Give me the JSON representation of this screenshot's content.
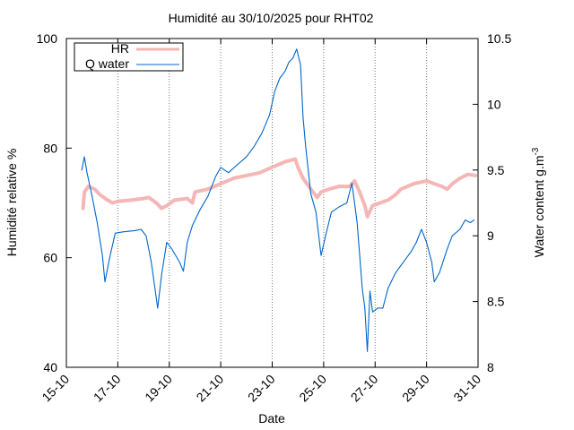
{
  "chart_data": {
    "type": "line",
    "title": "Humidité au 30/10/2025 pour RHT02",
    "xlabel": "Date",
    "ylabel_left": "Humidité relative %",
    "ylabel_right_base": "Water content g.m",
    "ylabel_right_sup": "-3",
    "x_tick_labels": [
      "15-10",
      "17-10",
      "19-10",
      "21-10",
      "23-10",
      "25-10",
      "27-10",
      "29-10",
      "31-10"
    ],
    "x_range_days": [
      15,
      31
    ],
    "y_left_ticks": [
      "40",
      "60",
      "80",
      "100"
    ],
    "y_left_range": [
      40,
      100
    ],
    "y_right_ticks": [
      "8",
      "8.5",
      "9",
      "9.5",
      "10",
      "10.5"
    ],
    "y_right_range": [
      8,
      10.5
    ],
    "grid": "vertical dotted at x ticks",
    "legend_position": "top-left",
    "series": [
      {
        "name": "HR",
        "axis": "left",
        "color": "#f5b6b6",
        "points": [
          [
            15.65,
            69.0
          ],
          [
            15.7,
            72.0
          ],
          [
            15.85,
            73.0
          ],
          [
            16.1,
            72.5
          ],
          [
            16.3,
            71.5
          ],
          [
            16.6,
            70.5
          ],
          [
            16.8,
            70.0
          ],
          [
            17.0,
            70.3
          ],
          [
            17.5,
            70.5
          ],
          [
            18.0,
            70.8
          ],
          [
            18.2,
            71.0
          ],
          [
            18.5,
            70.0
          ],
          [
            18.7,
            69.0
          ],
          [
            18.9,
            69.5
          ],
          [
            19.2,
            70.5
          ],
          [
            19.7,
            70.8
          ],
          [
            19.9,
            70.0
          ],
          [
            20.0,
            72.0
          ],
          [
            20.5,
            72.5
          ],
          [
            21.0,
            73.5
          ],
          [
            21.5,
            74.5
          ],
          [
            22.0,
            75.0
          ],
          [
            22.5,
            75.5
          ],
          [
            23.0,
            76.5
          ],
          [
            23.5,
            77.5
          ],
          [
            23.9,
            78.0
          ],
          [
            24.0,
            76.5
          ],
          [
            24.2,
            74.5
          ],
          [
            24.5,
            72.5
          ],
          [
            24.75,
            71.0
          ],
          [
            24.9,
            72.0
          ],
          [
            25.2,
            72.5
          ],
          [
            25.6,
            73.0
          ],
          [
            26.0,
            73.0
          ],
          [
            26.2,
            74.0
          ],
          [
            26.4,
            72.0
          ],
          [
            26.6,
            69.5
          ],
          [
            26.7,
            67.5
          ],
          [
            26.9,
            69.5
          ],
          [
            27.2,
            70.0
          ],
          [
            27.5,
            70.5
          ],
          [
            27.8,
            71.5
          ],
          [
            28.0,
            72.5
          ],
          [
            28.5,
            73.5
          ],
          [
            29.0,
            74.0
          ],
          [
            29.3,
            73.5
          ],
          [
            29.6,
            73.0
          ],
          [
            29.8,
            72.5
          ],
          [
            30.0,
            73.5
          ],
          [
            30.3,
            74.5
          ],
          [
            30.6,
            75.2
          ],
          [
            30.9,
            75.0
          ]
        ]
      },
      {
        "name": "Q water",
        "axis": "right",
        "color": "#0066cc",
        "points": [
          [
            15.6,
            9.5
          ],
          [
            15.65,
            9.55
          ],
          [
            15.7,
            9.6
          ],
          [
            15.8,
            9.48
          ],
          [
            16.0,
            9.3
          ],
          [
            16.2,
            9.1
          ],
          [
            16.4,
            8.85
          ],
          [
            16.5,
            8.65
          ],
          [
            16.7,
            8.85
          ],
          [
            16.9,
            9.02
          ],
          [
            17.2,
            9.03
          ],
          [
            17.7,
            9.04
          ],
          [
            17.9,
            9.05
          ],
          [
            18.1,
            9.0
          ],
          [
            18.3,
            8.8
          ],
          [
            18.55,
            8.45
          ],
          [
            18.7,
            8.7
          ],
          [
            18.9,
            8.95
          ],
          [
            19.1,
            8.9
          ],
          [
            19.4,
            8.8
          ],
          [
            19.55,
            8.73
          ],
          [
            19.7,
            8.95
          ],
          [
            19.9,
            9.08
          ],
          [
            20.2,
            9.2
          ],
          [
            20.5,
            9.3
          ],
          [
            20.8,
            9.45
          ],
          [
            21.0,
            9.52
          ],
          [
            21.3,
            9.48
          ],
          [
            21.7,
            9.55
          ],
          [
            22.0,
            9.6
          ],
          [
            22.3,
            9.68
          ],
          [
            22.6,
            9.78
          ],
          [
            22.9,
            9.92
          ],
          [
            23.1,
            10.1
          ],
          [
            23.3,
            10.2
          ],
          [
            23.5,
            10.25
          ],
          [
            23.65,
            10.32
          ],
          [
            23.8,
            10.35
          ],
          [
            23.95,
            10.42
          ],
          [
            24.1,
            10.3
          ],
          [
            24.2,
            9.9
          ],
          [
            24.3,
            9.68
          ],
          [
            24.5,
            9.32
          ],
          [
            24.7,
            9.18
          ],
          [
            24.9,
            8.85
          ],
          [
            25.1,
            9.02
          ],
          [
            25.3,
            9.18
          ],
          [
            25.6,
            9.22
          ],
          [
            25.9,
            9.25
          ],
          [
            26.1,
            9.4
          ],
          [
            26.3,
            9.1
          ],
          [
            26.5,
            8.6
          ],
          [
            26.6,
            8.45
          ],
          [
            26.7,
            8.12
          ],
          [
            26.8,
            8.58
          ],
          [
            26.9,
            8.42
          ],
          [
            27.1,
            8.45
          ],
          [
            27.3,
            8.45
          ],
          [
            27.5,
            8.6
          ],
          [
            27.8,
            8.72
          ],
          [
            28.1,
            8.8
          ],
          [
            28.4,
            8.88
          ],
          [
            28.6,
            8.95
          ],
          [
            28.8,
            9.05
          ],
          [
            29.0,
            8.95
          ],
          [
            29.2,
            8.8
          ],
          [
            29.3,
            8.65
          ],
          [
            29.5,
            8.72
          ],
          [
            29.8,
            8.9
          ],
          [
            30.0,
            9.0
          ],
          [
            30.3,
            9.05
          ],
          [
            30.5,
            9.12
          ],
          [
            30.7,
            9.1
          ],
          [
            30.85,
            9.12
          ]
        ]
      }
    ]
  }
}
